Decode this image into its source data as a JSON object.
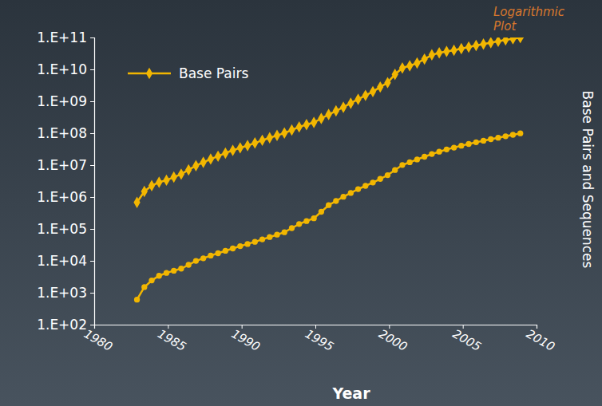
{
  "chart_data": {
    "type": "line",
    "annotation": "Logarithmic Plot",
    "xlabel": "Year",
    "ylabel": "Base Pairs and Sequences",
    "log": "y",
    "grid": false,
    "legend": "top-left",
    "x": [
      1982.9,
      1983.4,
      1983.9,
      1984.4,
      1984.9,
      1985.4,
      1985.9,
      1986.4,
      1986.9,
      1987.4,
      1987.9,
      1988.4,
      1988.9,
      1989.4,
      1989.9,
      1990.4,
      1990.9,
      1991.4,
      1991.9,
      1992.4,
      1992.9,
      1993.4,
      1993.9,
      1994.4,
      1994.9,
      1995.4,
      1995.9,
      1996.4,
      1996.9,
      1997.4,
      1997.9,
      1998.4,
      1998.9,
      1999.4,
      1999.9,
      2000.4,
      2000.9,
      2001.4,
      2001.9,
      2002.4,
      2002.9,
      2003.4,
      2003.9,
      2004.4,
      2004.9,
      2005.4,
      2005.9,
      2006.4,
      2006.9,
      2007.4,
      2007.9,
      2008.4,
      2008.9
    ],
    "series": [
      {
        "name": "Base Pairs",
        "color": "#f2b600",
        "marker": "diamond",
        "line_style": "solid",
        "values": [
          680000,
          1500000,
          2270000,
          2900000,
          3370000,
          4200000,
          5200000,
          7100000,
          9600000,
          12200000,
          15500000,
          19000000,
          23800000,
          29000000,
          34800000,
          41000000,
          49200000,
          60000000,
          72000000,
          85000000,
          101000000,
          126000000,
          157000000,
          185000000,
          217000000,
          290000000,
          385000000,
          500000000,
          652000000,
          870000000,
          1160000000,
          1530000000,
          2010000000,
          2800000000,
          3840000000,
          7000000000,
          11100000000,
          13000000000,
          15800000000,
          21000000000,
          28500000000,
          33000000000,
          36600000000,
          40000000000,
          44600000000,
          50000000000,
          56000000000,
          62000000000,
          69000000000,
          76000000000,
          83900000000,
          91000000000,
          99100000000
        ]
      },
      {
        "color": "#f2b600",
        "marker": "circle",
        "line_style": "solid",
        "values": [
          606,
          1500,
          2430,
          3400,
          4180,
          4900,
          5700,
          7500,
          9980,
          12000,
          14600,
          17300,
          20600,
          24400,
          28800,
          33700,
          39500,
          47000,
          55600,
          66000,
          78600,
          106000,
          143000,
          176000,
          215000,
          345000,
          556000,
          750000,
          1020000,
          1340000,
          1770000,
          2240000,
          2840000,
          3700000,
          4860000,
          7000000,
          10100000,
          12300000,
          15000000,
          18300000,
          22300000,
          26300000,
          31000000,
          35400000,
          40600000,
          46000000,
          52000000,
          58000000,
          64900000,
          72000000,
          80400000,
          89000000,
          98900000
        ]
      }
    ],
    "xlim": [
      1980,
      2010
    ],
    "xticks": [
      1980,
      1985,
      1990,
      1995,
      2000,
      2005,
      2010
    ],
    "ylim": [
      100,
      100000000000
    ],
    "yticks": [
      {
        "value": 100,
        "label": "1.E+02"
      },
      {
        "value": 1000,
        "label": "1.E+03"
      },
      {
        "value": 10000,
        "label": "1.E+04"
      },
      {
        "value": 100000,
        "label": "1.E+05"
      },
      {
        "value": 1000000,
        "label": "1.E+06"
      },
      {
        "value": 10000000,
        "label": "1.E+07"
      },
      {
        "value": 100000000,
        "label": "1.E+08"
      },
      {
        "value": 1000000000,
        "label": "1.E+09"
      },
      {
        "value": 10000000000,
        "label": "1.E+10"
      },
      {
        "value": 100000000000,
        "label": "1.E+11"
      }
    ]
  }
}
